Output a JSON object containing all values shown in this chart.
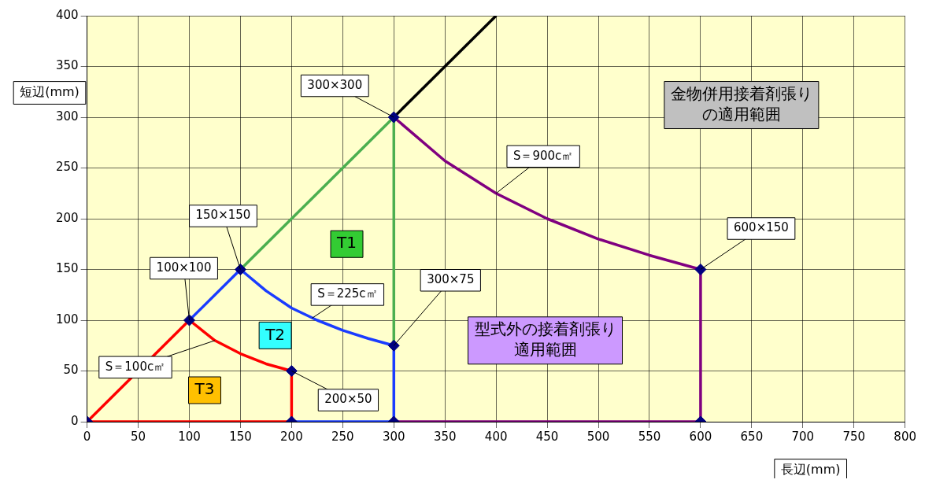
{
  "chart_data": {
    "type": "line",
    "xlabel": "長辺(mm)",
    "ylabel": "短辺(mm)",
    "xlim": [
      0,
      800
    ],
    "xticks": [
      0,
      50,
      100,
      150,
      200,
      250,
      300,
      350,
      400,
      450,
      500,
      550,
      600,
      650,
      700,
      750,
      800
    ],
    "ylim": [
      0,
      400
    ],
    "yticks": [
      0,
      50,
      100,
      150,
      200,
      250,
      300,
      350,
      400
    ],
    "grid": true,
    "legend": false,
    "line_style": "solid",
    "series": [
      {
        "color": "#000000",
        "x": [
          300,
          400
        ],
        "values": [
          300,
          400
        ]
      },
      {
        "color": "#4caf50",
        "x": [
          150,
          300,
          300
        ],
        "values": [
          150,
          300,
          75
        ]
      },
      {
        "color": "#1a3cff",
        "x": [
          100,
          150,
          175,
          200,
          225,
          250,
          275,
          300,
          300,
          200
        ],
        "values": [
          100,
          150,
          129,
          112,
          100,
          90,
          82,
          75,
          0,
          0
        ]
      },
      {
        "color": "#ff0000",
        "x": [
          0,
          100,
          125,
          150,
          175,
          200,
          200
        ],
        "values": [
          0,
          100,
          80,
          67,
          57,
          50,
          0
        ]
      },
      {
        "color": "#ff0000",
        "x": [
          0,
          200
        ],
        "values": [
          0,
          0
        ]
      },
      {
        "color": "#800080",
        "x": [
          300,
          350,
          400,
          450,
          500,
          550,
          600,
          600,
          300
        ],
        "values": [
          300,
          257,
          225,
          200,
          180,
          164,
          150,
          0,
          0
        ]
      },
      {
        "type": "scatter",
        "marker": "diamond",
        "color": "#000080",
        "x": [
          0,
          100,
          150,
          300,
          200,
          300,
          600,
          200,
          300,
          600
        ],
        "values": [
          0,
          100,
          150,
          300,
          50,
          75,
          150,
          0,
          0,
          0
        ]
      }
    ],
    "annotations": [
      {
        "text": "300×300",
        "x": 300,
        "y": 300
      },
      {
        "text": "150×150",
        "x": 150,
        "y": 150
      },
      {
        "text": "100×100",
        "x": 100,
        "y": 100
      },
      {
        "text": "300×75",
        "x": 300,
        "y": 75
      },
      {
        "text": "200×50",
        "x": 200,
        "y": 50
      },
      {
        "text": "600×150",
        "x": 600,
        "y": 150
      },
      {
        "text": "S＝900c㎡",
        "x": 400,
        "y": 225
      },
      {
        "text": "S＝225c㎡",
        "x": 220,
        "y": 102
      },
      {
        "text": "S＝100c㎡",
        "x": 125,
        "y": 80
      },
      {
        "text": "T1",
        "x": 254,
        "y": 175
      },
      {
        "text": "T2",
        "x": 184,
        "y": 85
      },
      {
        "text": "T3",
        "x": 115,
        "y": 31
      },
      "金物併用接着剤張りの適用範囲",
      "型式外の接着剤張り適用範囲"
    ]
  }
}
